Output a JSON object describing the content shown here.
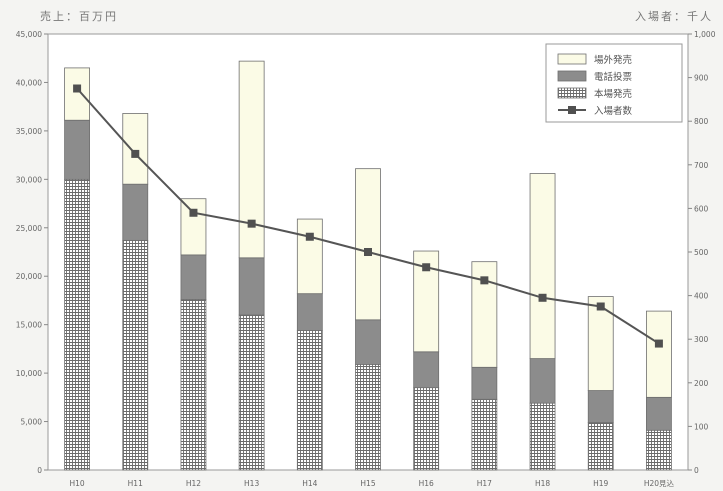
{
  "chart_data": {
    "type": "bar",
    "stacked": true,
    "title": "",
    "unit_left": "売上：百万円",
    "unit_right": "入場者：千人",
    "categories": [
      "H10",
      "H11",
      "H12",
      "H13",
      "H14",
      "H15",
      "H16",
      "H17",
      "H18",
      "H19",
      "H20見込"
    ],
    "series": [
      {
        "name": "本場発売",
        "values": [
          30000,
          23700,
          17600,
          16000,
          14400,
          10900,
          8500,
          7300,
          6900,
          4900,
          4100
        ],
        "color": "#ffffff",
        "pattern": "grid"
      },
      {
        "name": "電話投票",
        "values": [
          6100,
          5800,
          4600,
          5900,
          3800,
          4600,
          3700,
          3300,
          4600,
          3300,
          3400
        ],
        "color": "#8c8c8c"
      },
      {
        "name": "場外発売",
        "values": [
          5400,
          7300,
          5800,
          20300,
          7700,
          15600,
          10400,
          10900,
          19100,
          9700,
          8900
        ],
        "color": "#fbfbe6"
      },
      {
        "name": "入場者数",
        "type": "line",
        "axis": "right",
        "values": [
          875,
          725,
          590,
          565,
          535,
          500,
          465,
          435,
          395,
          375,
          290
        ],
        "color": "#555555"
      }
    ],
    "y_left": {
      "min": 0,
      "max": 45000,
      "step": 5000,
      "ticks": [
        "0",
        "5,000",
        "10,000",
        "15,000",
        "20,000",
        "25,000",
        "30,000",
        "35,000",
        "40,000",
        "45,000"
      ]
    },
    "y_right": {
      "min": 0,
      "max": 1000,
      "step": 100,
      "ticks": [
        "0",
        "100",
        "200",
        "300",
        "400",
        "500",
        "600",
        "700",
        "800",
        "900",
        "1,000"
      ]
    },
    "legend": {
      "position": "top-right",
      "order": [
        "場外発売",
        "電話投票",
        "本場発売",
        "入場者数"
      ]
    },
    "grid": false
  }
}
